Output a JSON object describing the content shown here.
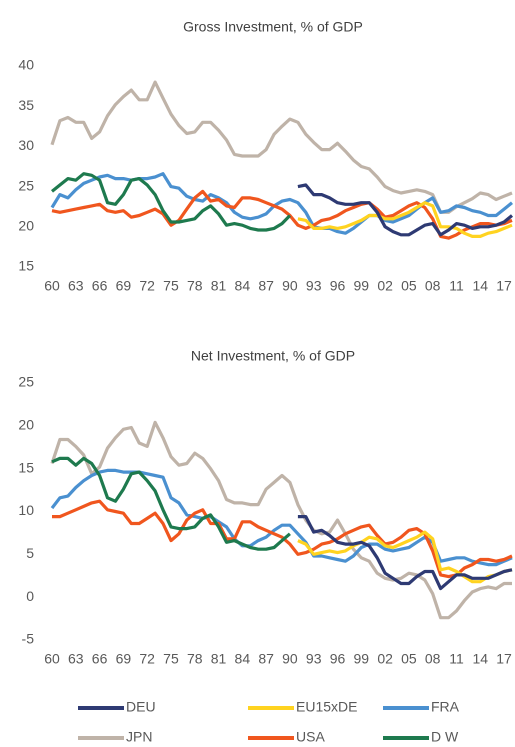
{
  "chart_data": [
    {
      "type": "line",
      "title": "Gross Investment, % of GDP",
      "x": [
        1960,
        1961,
        1962,
        1963,
        1964,
        1965,
        1966,
        1967,
        1968,
        1969,
        1970,
        1971,
        1972,
        1973,
        1974,
        1975,
        1976,
        1977,
        1978,
        1979,
        1980,
        1981,
        1982,
        1983,
        1984,
        1985,
        1986,
        1987,
        1988,
        1989,
        1990,
        1991,
        1992,
        1993,
        1994,
        1995,
        1996,
        1997,
        1998,
        1999,
        2000,
        2001,
        2002,
        2003,
        2004,
        2005,
        2006,
        2007,
        2008,
        2009,
        2010,
        2011,
        2012,
        2013,
        2014,
        2015,
        2016,
        2017,
        2018
      ],
      "xlim": [
        1960,
        2018
      ],
      "xticks": [
        {
          "value": 1960,
          "label": "60"
        },
        {
          "value": 1963,
          "label": "63"
        },
        {
          "value": 1966,
          "label": "66"
        },
        {
          "value": 1969,
          "label": "69"
        },
        {
          "value": 1972,
          "label": "72"
        },
        {
          "value": 1975,
          "label": "75"
        },
        {
          "value": 1978,
          "label": "78"
        },
        {
          "value": 1981,
          "label": "81"
        },
        {
          "value": 1984,
          "label": "84"
        },
        {
          "value": 1987,
          "label": "87"
        },
        {
          "value": 1990,
          "label": "90"
        },
        {
          "value": 1993,
          "label": "93"
        },
        {
          "value": 1996,
          "label": "96"
        },
        {
          "value": 1999,
          "label": "99"
        },
        {
          "value": 2002,
          "label": "02"
        },
        {
          "value": 2005,
          "label": "05"
        },
        {
          "value": 2008,
          "label": "08"
        },
        {
          "value": 2011,
          "label": "11"
        },
        {
          "value": 2014,
          "label": "14"
        },
        {
          "value": 2017,
          "label": "17"
        }
      ],
      "ylim": [
        15,
        40
      ],
      "yticks": [
        15,
        20,
        25,
        30,
        35,
        40
      ],
      "series": [
        {
          "name": "DEU",
          "color": "#2e3a73",
          "values": [
            null,
            null,
            null,
            null,
            null,
            null,
            null,
            null,
            null,
            null,
            null,
            null,
            null,
            null,
            null,
            null,
            null,
            null,
            null,
            null,
            null,
            null,
            null,
            null,
            null,
            null,
            null,
            null,
            null,
            null,
            null,
            25,
            25.2,
            24,
            24,
            23.6,
            23,
            22.8,
            22.8,
            23,
            23,
            21.8,
            20,
            19.4,
            19,
            19,
            19.6,
            20.2,
            20.4,
            19,
            19.6,
            20.4,
            20.2,
            19.8,
            20,
            20,
            20.2,
            20.6,
            21.4
          ]
        },
        {
          "name": "EU15xDE",
          "color": "#ffd320",
          "values": [
            null,
            null,
            null,
            null,
            null,
            null,
            null,
            null,
            null,
            null,
            null,
            null,
            null,
            null,
            null,
            null,
            null,
            null,
            null,
            null,
            null,
            null,
            null,
            null,
            null,
            null,
            null,
            null,
            null,
            null,
            null,
            21,
            20.8,
            19.8,
            19.8,
            20,
            19.8,
            20,
            20.4,
            20.8,
            21.4,
            21.4,
            21,
            21,
            21.4,
            21.8,
            22.4,
            23,
            22.6,
            20,
            20,
            19.8,
            19.2,
            18.8,
            18.8,
            19.2,
            19.4,
            19.8,
            20.2
          ]
        },
        {
          "name": "FRA",
          "color": "#4a90d0",
          "values": [
            22.4,
            24,
            23.6,
            24.6,
            25.4,
            25.8,
            26.2,
            26.4,
            26,
            26,
            25.8,
            26,
            26,
            26.2,
            26.6,
            25,
            24.8,
            23.8,
            23.4,
            23.2,
            24,
            23.6,
            23,
            21.8,
            21.2,
            21,
            21.2,
            21.6,
            22.6,
            23.2,
            23.4,
            23,
            21.8,
            20,
            19.8,
            19.8,
            19.4,
            19.2,
            19.8,
            20.6,
            21.4,
            21.4,
            20.8,
            20.6,
            21,
            21.4,
            22.2,
            23,
            23.6,
            21.8,
            22,
            22.6,
            22.4,
            22,
            21.8,
            21.4,
            21.4,
            22.2,
            23
          ]
        },
        {
          "name": "JPN",
          "color": "#bfb3a8",
          "values": [
            30.2,
            33.2,
            33.6,
            33,
            33,
            31,
            31.8,
            33.8,
            35.2,
            36.2,
            37,
            35.8,
            35.8,
            38,
            36,
            34,
            32.6,
            31.6,
            31.8,
            33,
            33,
            32,
            30.8,
            29,
            28.8,
            28.8,
            28.8,
            29.6,
            31.5,
            32.5,
            33.4,
            33,
            31.5,
            30.5,
            29.6,
            29.6,
            30.4,
            29.4,
            28.3,
            27.5,
            27.2,
            26.2,
            25,
            24.5,
            24.2,
            24.4,
            24.6,
            24.4,
            24,
            21.8,
            21.8,
            22.5,
            23,
            23.5,
            24.2,
            24,
            23.4,
            23.8,
            24.2
          ]
        },
        {
          "name": "USA",
          "color": "#f0561e",
          "values": [
            22,
            21.8,
            22,
            22.2,
            22.4,
            22.6,
            22.8,
            22,
            21.8,
            22,
            21.2,
            21.4,
            21.8,
            22.2,
            21.6,
            20.2,
            20.8,
            22.2,
            23.6,
            24.4,
            23.2,
            23.4,
            22.6,
            22.4,
            23.6,
            23.6,
            23.4,
            23,
            22.6,
            22.2,
            21.4,
            20.2,
            19.8,
            20.2,
            20.8,
            21,
            21.4,
            22,
            22.4,
            22.8,
            23,
            22.2,
            21.2,
            21.4,
            22,
            22.6,
            23,
            22.4,
            21,
            18.8,
            18.6,
            19,
            19.6,
            20,
            20.4,
            20.4,
            20.2,
            20.4,
            20.8
          ]
        },
        {
          "name": "D  W",
          "color": "#1e7a4e",
          "values": [
            24.4,
            25.2,
            26,
            25.8,
            26.6,
            26.4,
            25.8,
            23,
            22.8,
            24,
            25.8,
            26,
            25.2,
            24,
            22,
            20.6,
            20.6,
            20.8,
            21,
            22,
            22.6,
            21.6,
            20.2,
            20.4,
            20.2,
            19.8,
            19.6,
            19.6,
            19.8,
            20.4,
            21.4,
            null,
            null,
            null,
            null,
            null,
            null,
            null,
            null,
            null,
            null,
            null,
            null,
            null,
            null,
            null,
            null,
            null,
            null,
            null,
            null,
            null,
            null,
            null,
            null,
            null,
            null,
            null,
            null
          ]
        }
      ]
    },
    {
      "type": "line",
      "title": "Net Investment, % of GDP",
      "x": [
        1960,
        1961,
        1962,
        1963,
        1964,
        1965,
        1966,
        1967,
        1968,
        1969,
        1970,
        1971,
        1972,
        1973,
        1974,
        1975,
        1976,
        1977,
        1978,
        1979,
        1980,
        1981,
        1982,
        1983,
        1984,
        1985,
        1986,
        1987,
        1988,
        1989,
        1990,
        1991,
        1992,
        1993,
        1994,
        1995,
        1996,
        1997,
        1998,
        1999,
        2000,
        2001,
        2002,
        2003,
        2004,
        2005,
        2006,
        2007,
        2008,
        2009,
        2010,
        2011,
        2012,
        2013,
        2014,
        2015,
        2016,
        2017,
        2018
      ],
      "xlim": [
        1960,
        2018
      ],
      "xticks": [
        {
          "value": 1960,
          "label": "60"
        },
        {
          "value": 1963,
          "label": "63"
        },
        {
          "value": 1966,
          "label": "66"
        },
        {
          "value": 1969,
          "label": "69"
        },
        {
          "value": 1972,
          "label": "72"
        },
        {
          "value": 1975,
          "label": "75"
        },
        {
          "value": 1978,
          "label": "78"
        },
        {
          "value": 1981,
          "label": "81"
        },
        {
          "value": 1984,
          "label": "84"
        },
        {
          "value": 1987,
          "label": "87"
        },
        {
          "value": 1990,
          "label": "90"
        },
        {
          "value": 1993,
          "label": "93"
        },
        {
          "value": 1996,
          "label": "96"
        },
        {
          "value": 1999,
          "label": "99"
        },
        {
          "value": 2002,
          "label": "02"
        },
        {
          "value": 2005,
          "label": "05"
        },
        {
          "value": 2008,
          "label": "08"
        },
        {
          "value": 2011,
          "label": "11"
        },
        {
          "value": 2014,
          "label": "14"
        },
        {
          "value": 2017,
          "label": "17"
        }
      ],
      "ylim": [
        -5,
        25
      ],
      "yticks": [
        -5,
        0,
        5,
        10,
        15,
        20,
        25
      ],
      "series": [
        {
          "name": "DEU",
          "color": "#2e3a73",
          "values": [
            null,
            null,
            null,
            null,
            null,
            null,
            null,
            null,
            null,
            null,
            null,
            null,
            null,
            null,
            null,
            null,
            null,
            null,
            null,
            null,
            null,
            null,
            null,
            null,
            null,
            null,
            null,
            null,
            null,
            null,
            null,
            9.4,
            9.4,
            7.6,
            7.8,
            7.2,
            6.4,
            6.2,
            6.2,
            6.4,
            6,
            4.6,
            2.8,
            2.2,
            1.6,
            1.6,
            2.4,
            3,
            3,
            1,
            1.8,
            2.6,
            2.6,
            2.2,
            2.2,
            2.2,
            2.6,
            3,
            3.2
          ]
        },
        {
          "name": "EU15xDE",
          "color": "#ffd320",
          "values": [
            null,
            null,
            null,
            null,
            null,
            null,
            null,
            null,
            null,
            null,
            null,
            null,
            null,
            null,
            null,
            null,
            null,
            null,
            null,
            null,
            null,
            null,
            null,
            null,
            null,
            null,
            null,
            null,
            null,
            null,
            null,
            6.6,
            6.2,
            5,
            5.2,
            5.4,
            5.2,
            5.4,
            6,
            6.4,
            7,
            6.8,
            6,
            5.8,
            6.2,
            6.6,
            7,
            7.6,
            6.8,
            3.2,
            3.4,
            3,
            2.4,
            1.8,
            1.8,
            2.4,
            2.6,
            3,
            3.2
          ]
        },
        {
          "name": "FRA",
          "color": "#4a90d0",
          "values": [
            10.4,
            11.6,
            11.8,
            12.8,
            13.6,
            14.2,
            14.6,
            14.8,
            14.8,
            14.6,
            14.6,
            14.6,
            14.4,
            14.2,
            14,
            11.6,
            11,
            9.6,
            9.4,
            9.2,
            9.4,
            8.8,
            8.2,
            6.8,
            6,
            6,
            6.6,
            7,
            7.8,
            8.4,
            8.4,
            7.4,
            6.4,
            4.8,
            4.8,
            4.6,
            4.4,
            4.2,
            4.8,
            5.8,
            6.2,
            6.2,
            5.6,
            5.4,
            5.6,
            5.8,
            6.4,
            7,
            6.4,
            4.2,
            4.4,
            4.6,
            4.6,
            4.2,
            4,
            3.8,
            3.8,
            4.2,
            4.6
          ]
        },
        {
          "name": "JPN",
          "color": "#bfb3a8",
          "values": [
            15.6,
            18.4,
            18.4,
            17.6,
            16.6,
            14.4,
            15.2,
            17.4,
            18.6,
            19.6,
            19.8,
            18,
            17.6,
            20.4,
            18.6,
            16.4,
            15.4,
            15.6,
            16.8,
            16.2,
            15,
            13.6,
            11.4,
            11,
            11,
            10.8,
            10.8,
            12.6,
            13.4,
            14.2,
            13.4,
            10.8,
            9,
            7.8,
            7.4,
            7.6,
            9,
            7.4,
            5.6,
            4.6,
            4.2,
            2.8,
            2.2,
            2,
            2.2,
            2.8,
            2.6,
            2,
            0.4,
            -2.4,
            -2.4,
            -1.6,
            -0.4,
            0.6,
            1,
            1.2,
            1,
            1.6,
            1.6
          ]
        },
        {
          "name": "USA",
          "color": "#f0561e",
          "values": [
            9.4,
            9.4,
            9.8,
            10.2,
            10.6,
            11,
            11.2,
            10.2,
            10,
            9.8,
            8.6,
            8.6,
            9.2,
            9.8,
            8.6,
            6.6,
            7.4,
            9,
            9.8,
            10.2,
            8.6,
            8.6,
            6.8,
            6.8,
            8.8,
            8.8,
            8.2,
            7.8,
            7.4,
            7,
            6.2,
            5,
            5.2,
            5.6,
            6.2,
            6.4,
            6.8,
            7.4,
            7.8,
            8.2,
            8.4,
            7.2,
            6.2,
            6.4,
            7,
            7.8,
            8,
            7.4,
            5.4,
            2.6,
            2.4,
            2.6,
            3.4,
            3.8,
            4.4,
            4.4,
            4.2,
            4.4,
            4.8
          ]
        },
        {
          "name": "D  W",
          "color": "#1e7a4e",
          "values": [
            15.8,
            16.2,
            16.2,
            15.4,
            16.2,
            15.6,
            14.2,
            11.6,
            11.2,
            12.6,
            14.4,
            14.6,
            13.6,
            12.4,
            10.2,
            8.2,
            8,
            8,
            8.2,
            9.2,
            9.6,
            8.2,
            6.4,
            6.6,
            6.2,
            5.8,
            5.6,
            5.6,
            5.8,
            6.6,
            7.4,
            null,
            null,
            null,
            null,
            null,
            null,
            null,
            null,
            null,
            null,
            null,
            null,
            null,
            null,
            null,
            null,
            null,
            null,
            null,
            null,
            null,
            null,
            null,
            null,
            null,
            null,
            null,
            null
          ]
        }
      ]
    }
  ]
}
